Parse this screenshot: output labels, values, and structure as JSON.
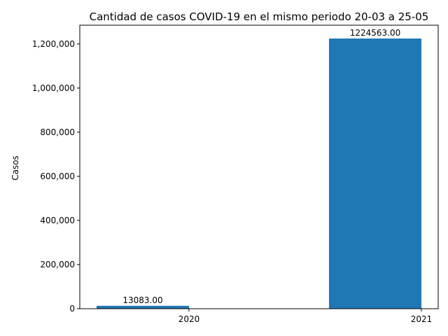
{
  "chart_data": {
    "type": "bar",
    "title": "Cantidad de casos COVID-19 en el mismo periodo 20-03 a 25-05",
    "xlabel": "",
    "ylabel": "Casos",
    "ylim": [
      0,
      1285000
    ],
    "yticks": [
      0,
      200000,
      400000,
      600000,
      800000,
      1000000,
      1200000
    ],
    "ytick_labels": [
      "0",
      "200,000",
      "400,000",
      "600,000",
      "800,000",
      "1,000,000",
      "1,200,000"
    ],
    "categories": [
      "2020",
      "2021"
    ],
    "values": [
      13083,
      1224563
    ],
    "data_labels": [
      "13083.00",
      "1224563.00"
    ],
    "bar_color": "#1f77b4",
    "grid": false,
    "legend": "none"
  }
}
